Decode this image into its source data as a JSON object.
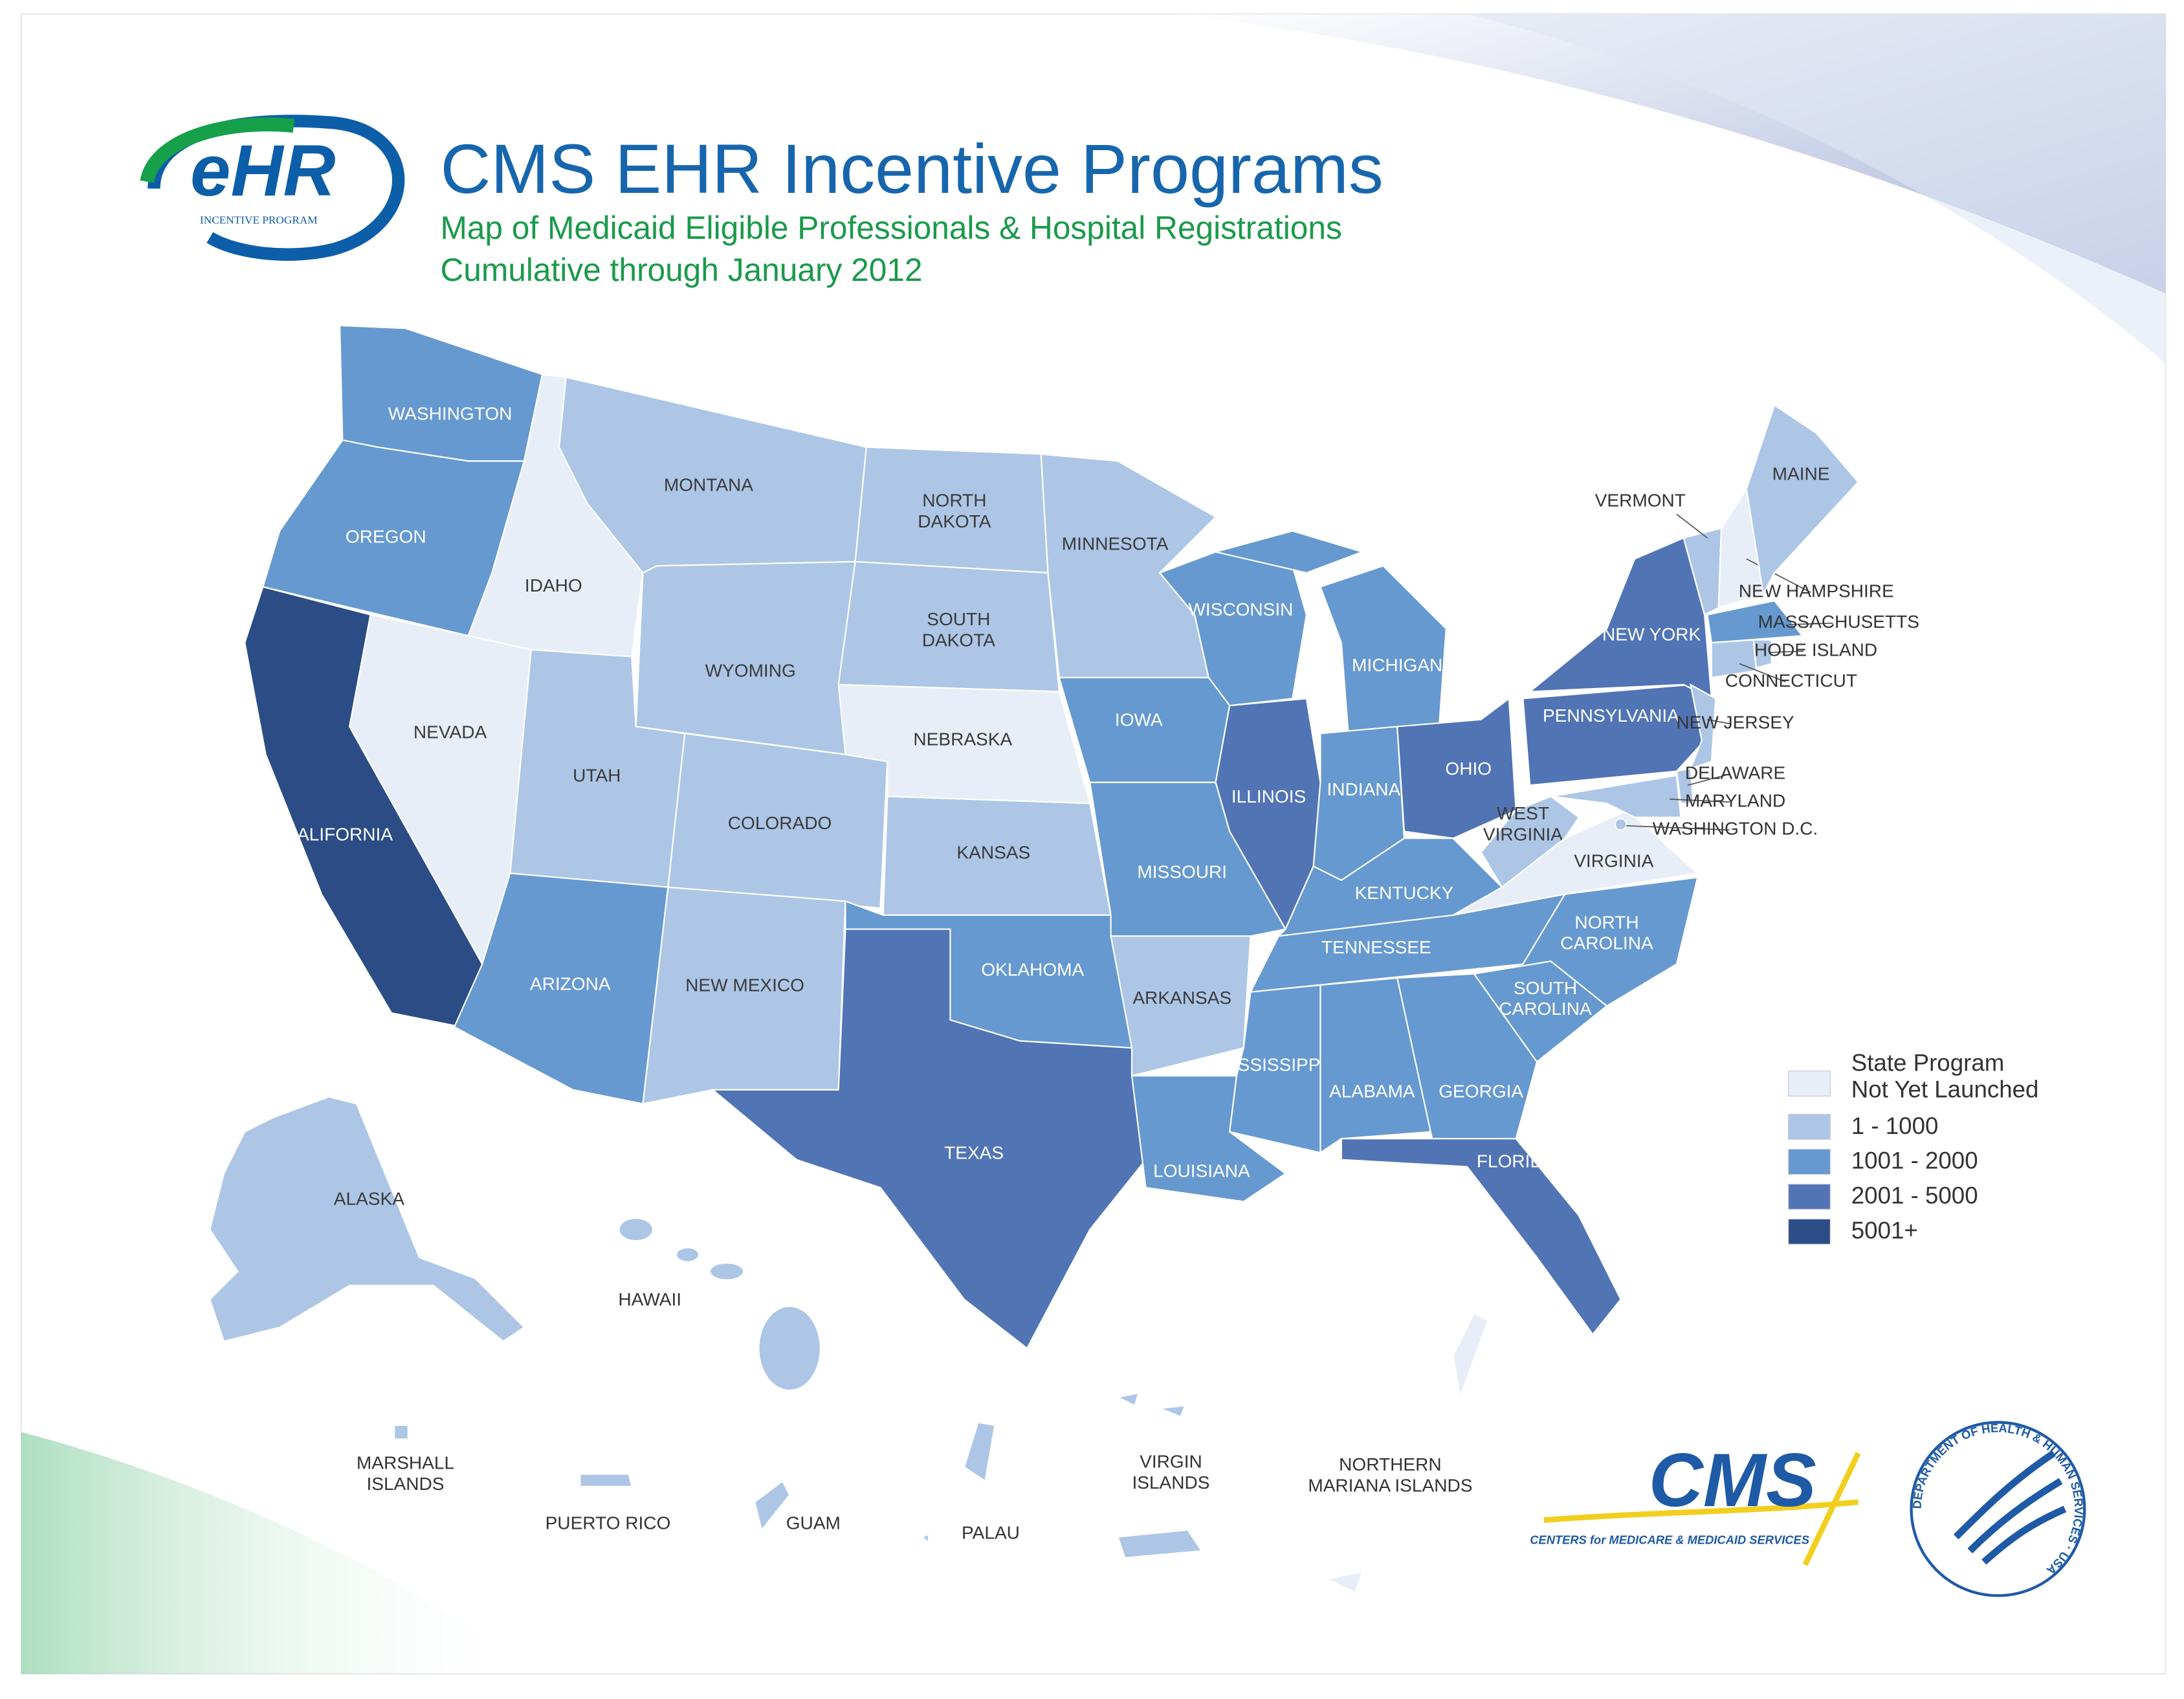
{
  "header": {
    "title": "CMS EHR Incentive Programs",
    "subtitle": "Map of Medicaid Eligible Professionals & Hospital Registrations",
    "period": "Cumulative through January 2012"
  },
  "logos": {
    "ehr_mark": "eHR",
    "ehr_tagline": "INCENTIVE PROGRAM",
    "cms_mark": "CMS",
    "cms_tagline": "CENTERS for MEDICARE & MEDICAID SERVICES",
    "hhs_seal": "DEPARTMENT OF HEALTH & HUMAN SERVICES · USA"
  },
  "legend": [
    {
      "label": [
        "State Program",
        "Not Yet Launched"
      ],
      "color": "#e8eef7"
    },
    {
      "label": [
        "1 - 1000"
      ],
      "color": "#adc6e6"
    },
    {
      "label": [
        "1001 - 2000"
      ],
      "color": "#6699d0"
    },
    {
      "label": [
        "2001 - 5000"
      ],
      "color": "#5174b5"
    },
    {
      "label": [
        "5001+"
      ],
      "color": "#2b4c85"
    }
  ],
  "regions": [
    {
      "name": [
        "WASHINGTON"
      ],
      "color": "#6699d0"
    },
    {
      "name": [
        "OREGON"
      ],
      "color": "#6699d0"
    },
    {
      "name": [
        "CALIFORNIA"
      ],
      "color": "#2b4c85"
    },
    {
      "name": [
        "NEVADA"
      ],
      "color": "#e8eef7"
    },
    {
      "name": [
        "IDAHO"
      ],
      "color": "#e8eef7"
    },
    {
      "name": [
        "MONTANA"
      ],
      "color": "#adc6e6"
    },
    {
      "name": [
        "WYOMING"
      ],
      "color": "#adc6e6"
    },
    {
      "name": [
        "UTAH"
      ],
      "color": "#adc6e6"
    },
    {
      "name": [
        "COLORADO"
      ],
      "color": "#adc6e6"
    },
    {
      "name": [
        "ARIZONA"
      ],
      "color": "#6699d0"
    },
    {
      "name": [
        "NEW MEXICO"
      ],
      "color": "#adc6e6"
    },
    {
      "name": [
        "NORTH",
        "DAKOTA"
      ],
      "color": "#adc6e6"
    },
    {
      "name": [
        "SOUTH",
        "DAKOTA"
      ],
      "color": "#adc6e6"
    },
    {
      "name": [
        "NEBRASKA"
      ],
      "color": "#e8eef7"
    },
    {
      "name": [
        "KANSAS"
      ],
      "color": "#adc6e6"
    },
    {
      "name": [
        "OKLAHOMA"
      ],
      "color": "#6699d0"
    },
    {
      "name": [
        "TEXAS"
      ],
      "color": "#5174b5"
    },
    {
      "name": [
        "MINNESOTA"
      ],
      "color": "#adc6e6"
    },
    {
      "name": [
        "WISCONSIN"
      ],
      "color": "#6699d0"
    },
    {
      "name": [
        "MICHIGAN"
      ],
      "color": "#6699d0"
    },
    {
      "name": [
        "IOWA"
      ],
      "color": "#6699d0"
    },
    {
      "name": [
        "ILLINOIS"
      ],
      "color": "#5174b5"
    },
    {
      "name": [
        "INDIANA"
      ],
      "color": "#6699d0"
    },
    {
      "name": [
        "OHIO"
      ],
      "color": "#5174b5"
    },
    {
      "name": [
        "MISSOURI"
      ],
      "color": "#6699d0"
    },
    {
      "name": [
        "KENTUCKY"
      ],
      "color": "#6699d0"
    },
    {
      "name": [
        "WEST",
        "VIRGINIA"
      ],
      "color": "#adc6e6"
    },
    {
      "name": [
        "VIRGINIA"
      ],
      "color": "#e8eef7"
    },
    {
      "name": [
        "TENNESSEE"
      ],
      "color": "#6699d0"
    },
    {
      "name": [
        "NORTH",
        "CAROLINA"
      ],
      "color": "#6699d0"
    },
    {
      "name": [
        "SOUTH",
        "CAROLINA"
      ],
      "color": "#6699d0"
    },
    {
      "name": [
        "ARKANSAS"
      ],
      "color": "#adc6e6"
    },
    {
      "name": [
        "MISSISSIPPI"
      ],
      "color": "#6699d0"
    },
    {
      "name": [
        "ALABAMA"
      ],
      "color": "#6699d0"
    },
    {
      "name": [
        "GEORGIA"
      ],
      "color": "#6699d0"
    },
    {
      "name": [
        "LOUISIANA"
      ],
      "color": "#6699d0"
    },
    {
      "name": [
        "FLORIDA"
      ],
      "color": "#5174b5"
    },
    {
      "name": [
        "PENNSYLVANIA"
      ],
      "color": "#5174b5"
    },
    {
      "name": [
        "NEW YORK"
      ],
      "color": "#5174b5"
    },
    {
      "name": [
        "VERMONT"
      ],
      "color": "#adc6e6"
    },
    {
      "name": [
        "NEW HAMPSHIRE"
      ],
      "color": "#e8eef7"
    },
    {
      "name": [
        "MAINE"
      ],
      "color": "#adc6e6"
    },
    {
      "name": [
        "MASSACHUSETTS"
      ],
      "color": "#6699d0"
    },
    {
      "name": [
        "RHODE ISLAND"
      ],
      "color": "#adc6e6"
    },
    {
      "name": [
        "CONNECTICUT"
      ],
      "color": "#adc6e6"
    },
    {
      "name": [
        "NEW JERSEY"
      ],
      "color": "#adc6e6"
    },
    {
      "name": [
        "DELAWARE"
      ],
      "color": "#adc6e6"
    },
    {
      "name": [
        "MARYLAND"
      ],
      "color": "#adc6e6"
    },
    {
      "name": [
        "WASHINGTON D.C."
      ],
      "color": "#adc6e6"
    },
    {
      "name": [
        "ALASKA"
      ],
      "color": "#adc6e6"
    },
    {
      "name": [
        "HAWAII"
      ],
      "color": "#adc6e6"
    },
    {
      "name": [
        "MARSHALL",
        "ISLANDS"
      ],
      "color": "#adc6e6"
    },
    {
      "name": [
        "PUERTO RICO"
      ],
      "color": "#adc6e6"
    },
    {
      "name": [
        "GUAM"
      ],
      "color": "#adc6e6"
    },
    {
      "name": [
        "PALAU"
      ],
      "color": "#adc6e6"
    },
    {
      "name": [
        "VIRGIN",
        "ISLANDS"
      ],
      "color": "#adc6e6"
    },
    {
      "name": [
        "NORTHERN",
        "MARIANA ISLANDS"
      ],
      "color": "#e8eef7"
    }
  ]
}
